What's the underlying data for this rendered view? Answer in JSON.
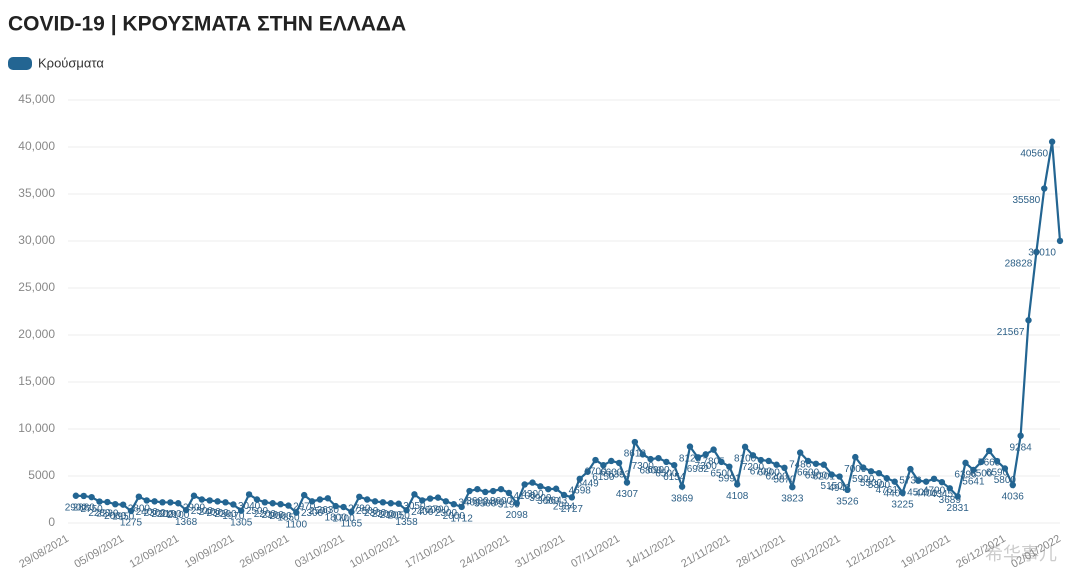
{
  "chart_data": {
    "type": "line",
    "title": "COVID-19 | ΚΡΟΥΣΜΑΤΑ ΣΤΗΝ ΕΛΛΑΔΑ",
    "watermark": "希华事儿",
    "categories": [
      "29/08/2021",
      null,
      null,
      null,
      null,
      null,
      null,
      "05/09/2021",
      null,
      null,
      null,
      null,
      null,
      null,
      "12/09/2021",
      null,
      null,
      null,
      null,
      null,
      null,
      "19/09/2021",
      null,
      null,
      null,
      null,
      null,
      null,
      "26/09/2021",
      null,
      null,
      null,
      null,
      null,
      null,
      "03/10/2021",
      null,
      null,
      null,
      null,
      null,
      null,
      "10/10/2021",
      null,
      null,
      null,
      null,
      null,
      null,
      "17/10/2021",
      null,
      null,
      null,
      null,
      null,
      null,
      "24/10/2021",
      null,
      null,
      null,
      null,
      null,
      null,
      "31/10/2021",
      null,
      null,
      null,
      null,
      null,
      null,
      "07/11/2021",
      null,
      null,
      null,
      null,
      null,
      null,
      "14/11/2021",
      null,
      null,
      null,
      null,
      null,
      null,
      "21/11/2021",
      null,
      null,
      null,
      null,
      null,
      null,
      "28/11/2021",
      null,
      null,
      null,
      null,
      null,
      null,
      "05/12/2021",
      null,
      null,
      null,
      null,
      null,
      null,
      "12/12/2021",
      null,
      null,
      null,
      null,
      null,
      null,
      "19/12/2021",
      null,
      null,
      null,
      null,
      null,
      null,
      "26/12/2021",
      null,
      null,
      null,
      null,
      null,
      null,
      "02/01/2022"
    ],
    "series": [
      {
        "name": "Κρούσματα",
        "color": "#236592",
        "values": [
          null,
          2900,
          2880,
          2750,
          2280,
          2230,
          2000,
          1950,
          1275,
          2800,
          2400,
          2300,
          2200,
          2190,
          2100,
          1368,
          2900,
          2500,
          2400,
          2300,
          2200,
          1970,
          1305,
          3040,
          2500,
          2200,
          2100,
          2000,
          1850,
          1100,
          2970,
          2300,
          2500,
          2630,
          1800,
          1700,
          1165,
          2790,
          2500,
          2300,
          2200,
          2100,
          2050,
          1358,
          3050,
          2400,
          2600,
          2700,
          2300,
          2000,
          1712,
          3400,
          3600,
          3300,
          3400,
          3600,
          3199,
          2098,
          4100,
          4300,
          3900,
          3600,
          3643,
          2984,
          2727,
          4698,
          5449,
          6700,
          6150,
          6600,
          6393,
          4307,
          8613,
          7300,
          6800,
          6900,
          6500,
          6154,
          3869,
          8125,
          6982,
          7300,
          7805,
          6500,
          5991,
          4108,
          8100,
          7200,
          6700,
          6600,
          6200,
          5870,
          3823,
          7486,
          6600,
          6300,
          6201,
          5150,
          4943,
          3526,
          7009,
          5900,
          5500,
          5300,
          4761,
          4400,
          3225,
          5736,
          4500,
          4400,
          4700,
          4345,
          3689,
          2831,
          6396,
          5641,
          6500,
          7665,
          6590,
          5800,
          4036,
          9284,
          21567,
          28828,
          35580,
          40560,
          30010
        ]
      }
    ],
    "ylim": [
      0,
      45000
    ],
    "yticks": [
      0,
      {
        "value": 5000,
        "label": "5000"
      },
      {
        "value": 10000,
        "label": "10,000"
      },
      {
        "value": 15000,
        "label": "15,000"
      },
      {
        "value": 20000,
        "label": "20,000"
      },
      {
        "value": 25000,
        "label": "25,000"
      },
      {
        "value": 30000,
        "label": "30,000"
      },
      {
        "value": 35000,
        "label": "35,000"
      },
      {
        "value": 40000,
        "label": "40,000"
      },
      {
        "value": 45000,
        "label": "45,000"
      }
    ],
    "grid": true,
    "legend": "top-left"
  }
}
